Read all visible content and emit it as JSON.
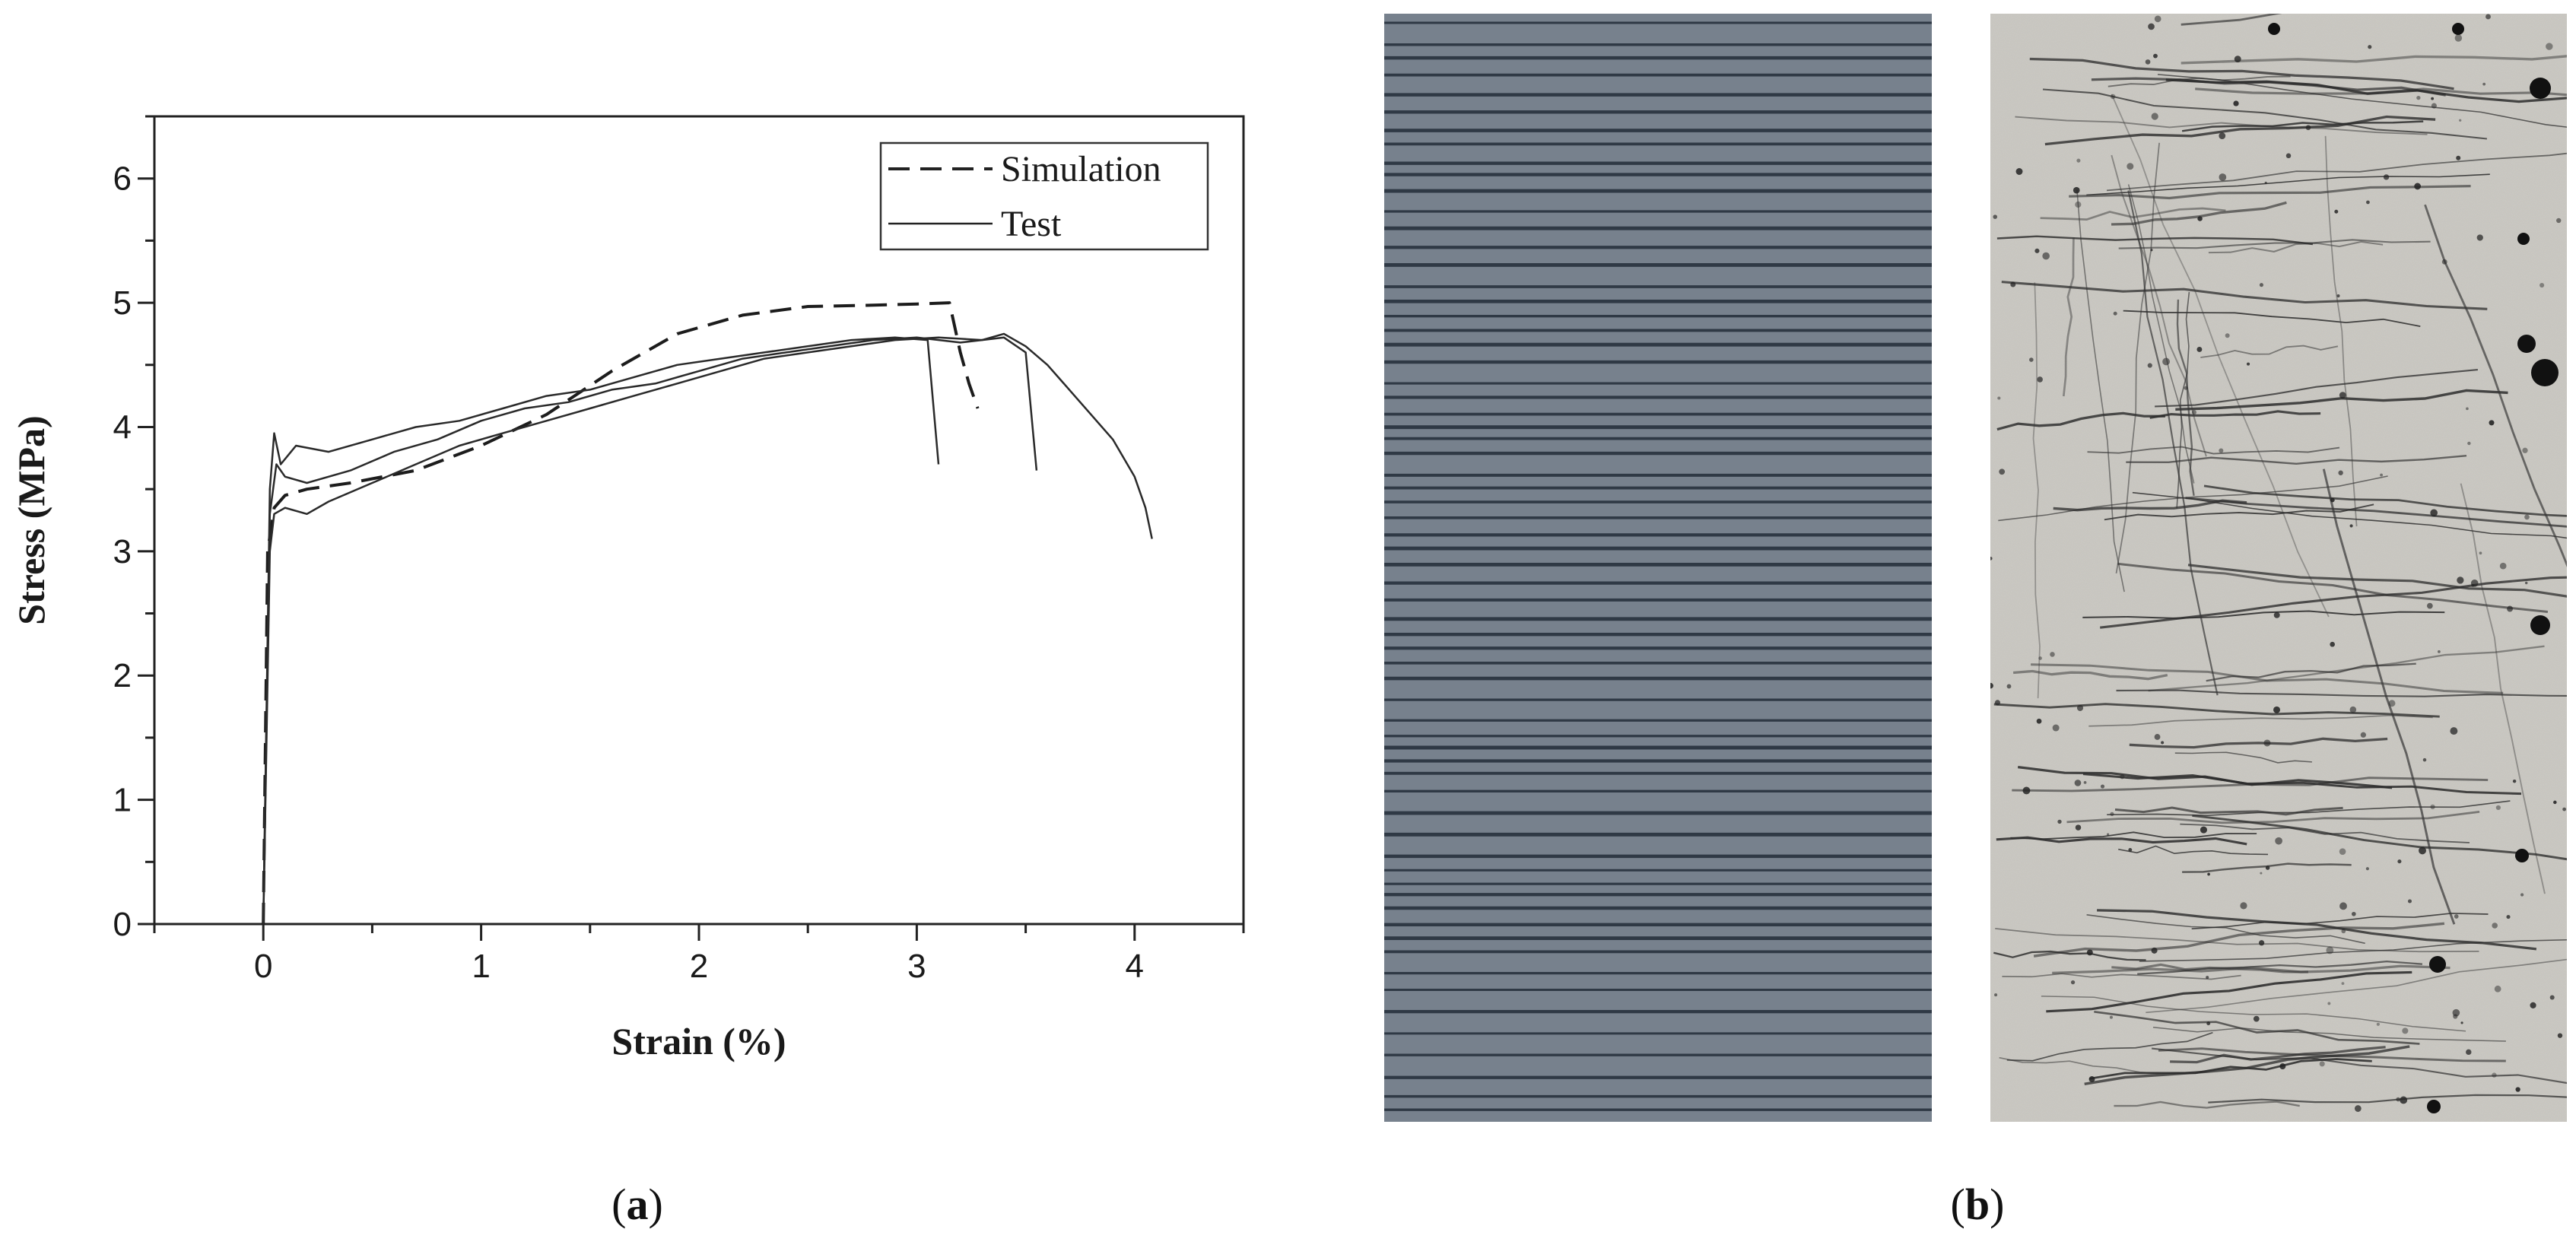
{
  "figure": {
    "panel_a_label": {
      "open": "(",
      "letter": "a",
      "close": ")"
    },
    "panel_b_label": {
      "open": "(",
      "letter": "b",
      "close": ")"
    }
  },
  "chart_data": {
    "type": "line",
    "xlabel": "Strain (%)",
    "ylabel": "Stress (MPa)",
    "xlim": [
      -0.5,
      4.5
    ],
    "ylim": [
      0,
      6.5
    ],
    "xticks": [
      0,
      1,
      2,
      3,
      4
    ],
    "yticks": [
      0,
      1,
      2,
      3,
      4,
      5,
      6
    ],
    "grid": false,
    "legend_position": "top-right",
    "legend": [
      {
        "label": "Simulation",
        "style": "dashed"
      },
      {
        "label": "Test",
        "style": "solid"
      }
    ],
    "series": [
      {
        "name": "Simulation",
        "style": "dashed",
        "x": [
          0,
          0.02,
          0.05,
          0.1,
          0.2,
          0.4,
          0.7,
          1.0,
          1.3,
          1.6,
          1.9,
          2.2,
          2.5,
          2.8,
          3.0,
          3.15,
          3.2,
          3.24,
          3.28
        ],
        "y": [
          0,
          3.0,
          3.35,
          3.45,
          3.5,
          3.55,
          3.65,
          3.85,
          4.1,
          4.45,
          4.75,
          4.9,
          4.97,
          4.98,
          4.99,
          5.0,
          4.6,
          4.35,
          4.15
        ]
      },
      {
        "name": "Test",
        "style": "solid",
        "x": [
          0,
          0.03,
          0.05,
          0.08,
          0.15,
          0.3,
          0.5,
          0.7,
          0.9,
          1.1,
          1.3,
          1.5,
          1.7,
          1.9,
          2.1,
          2.3,
          2.5,
          2.7,
          2.9,
          3.05,
          3.1
        ],
        "y": [
          0,
          3.5,
          3.95,
          3.7,
          3.85,
          3.8,
          3.9,
          4.0,
          4.05,
          4.15,
          4.25,
          4.3,
          4.4,
          4.5,
          4.55,
          4.6,
          4.65,
          4.7,
          4.72,
          4.7,
          3.7
        ]
      },
      {
        "name": "Test",
        "style": "solid",
        "x": [
          0,
          0.03,
          0.06,
          0.1,
          0.2,
          0.4,
          0.6,
          0.8,
          1.0,
          1.2,
          1.4,
          1.6,
          1.8,
          2.0,
          2.2,
          2.4,
          2.6,
          2.8,
          3.0,
          3.2,
          3.4,
          3.5,
          3.55
        ],
        "y": [
          0,
          3.3,
          3.7,
          3.6,
          3.55,
          3.65,
          3.8,
          3.9,
          4.05,
          4.15,
          4.2,
          4.3,
          4.35,
          4.45,
          4.55,
          4.6,
          4.65,
          4.7,
          4.72,
          4.68,
          4.72,
          4.6,
          3.65
        ]
      },
      {
        "name": "Test",
        "style": "solid",
        "x": [
          0,
          0.03,
          0.05,
          0.1,
          0.2,
          0.3,
          0.5,
          0.7,
          0.9,
          1.1,
          1.3,
          1.5,
          1.7,
          1.9,
          2.1,
          2.3,
          2.5,
          2.7,
          2.9,
          3.1,
          3.3,
          3.4,
          3.5,
          3.6,
          3.7,
          3.8,
          3.9,
          4.0,
          4.05,
          4.08
        ],
        "y": [
          0,
          3.0,
          3.3,
          3.35,
          3.3,
          3.4,
          3.55,
          3.7,
          3.85,
          3.95,
          4.05,
          4.15,
          4.25,
          4.35,
          4.45,
          4.55,
          4.6,
          4.65,
          4.7,
          4.72,
          4.7,
          4.75,
          4.65,
          4.5,
          4.3,
          4.1,
          3.9,
          3.6,
          3.35,
          3.1
        ]
      }
    ]
  }
}
